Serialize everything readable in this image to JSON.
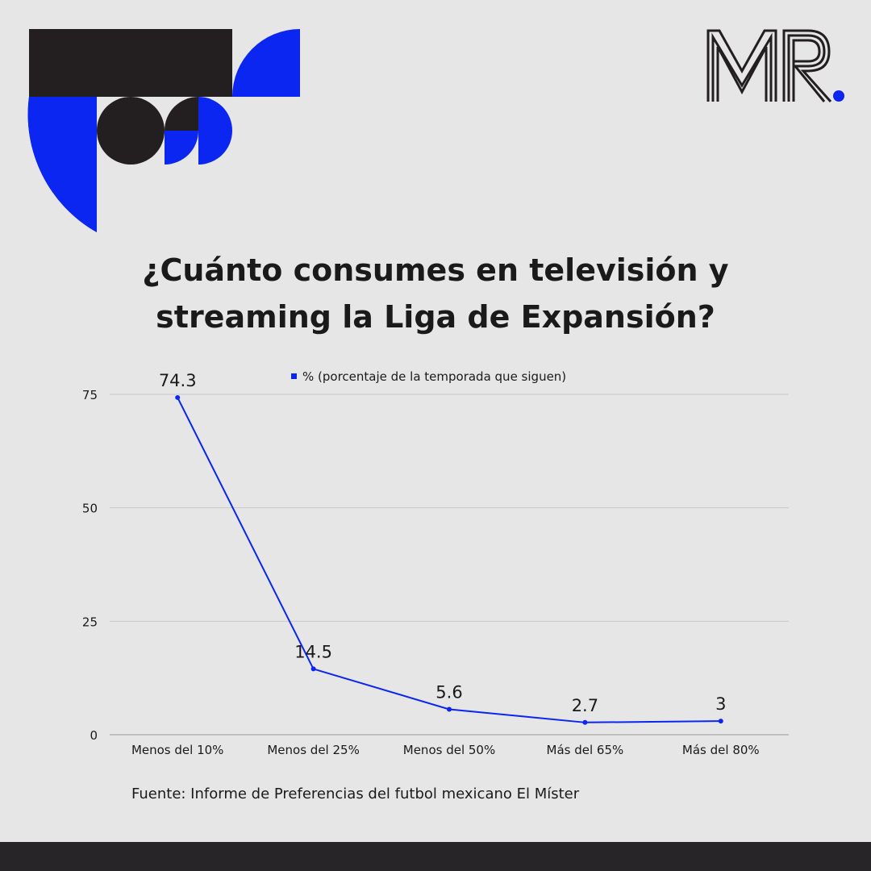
{
  "brand": {
    "logo_text": "MR.",
    "accent_color": "#0a26f0",
    "dark_color": "#231f20"
  },
  "title": {
    "line1": "¿Cuánto consumes en televisión y",
    "line2": "streaming la Liga de Expansión?"
  },
  "chart_data": {
    "type": "line",
    "categories": [
      "Menos del 10%",
      "Menos del 25%",
      "Menos del 50%",
      "Más del 65%",
      "Más del 80%"
    ],
    "series": [
      {
        "name": "% (porcentaje de la temporada que siguen)",
        "values": [
          74.3,
          14.5,
          5.6,
          2.7,
          3
        ],
        "labels": [
          "74.3",
          "14.5",
          "5.6",
          "2.7",
          "3"
        ],
        "color": "#0a26f0"
      }
    ],
    "ylim": [
      0,
      75
    ],
    "yticks": [
      "0",
      "25",
      "50",
      "75"
    ],
    "grid": true,
    "legend": "top-center",
    "xlabel": "",
    "ylabel": ""
  },
  "source": "Fuente: Informe de Preferencias del futbol mexicano El Míster"
}
